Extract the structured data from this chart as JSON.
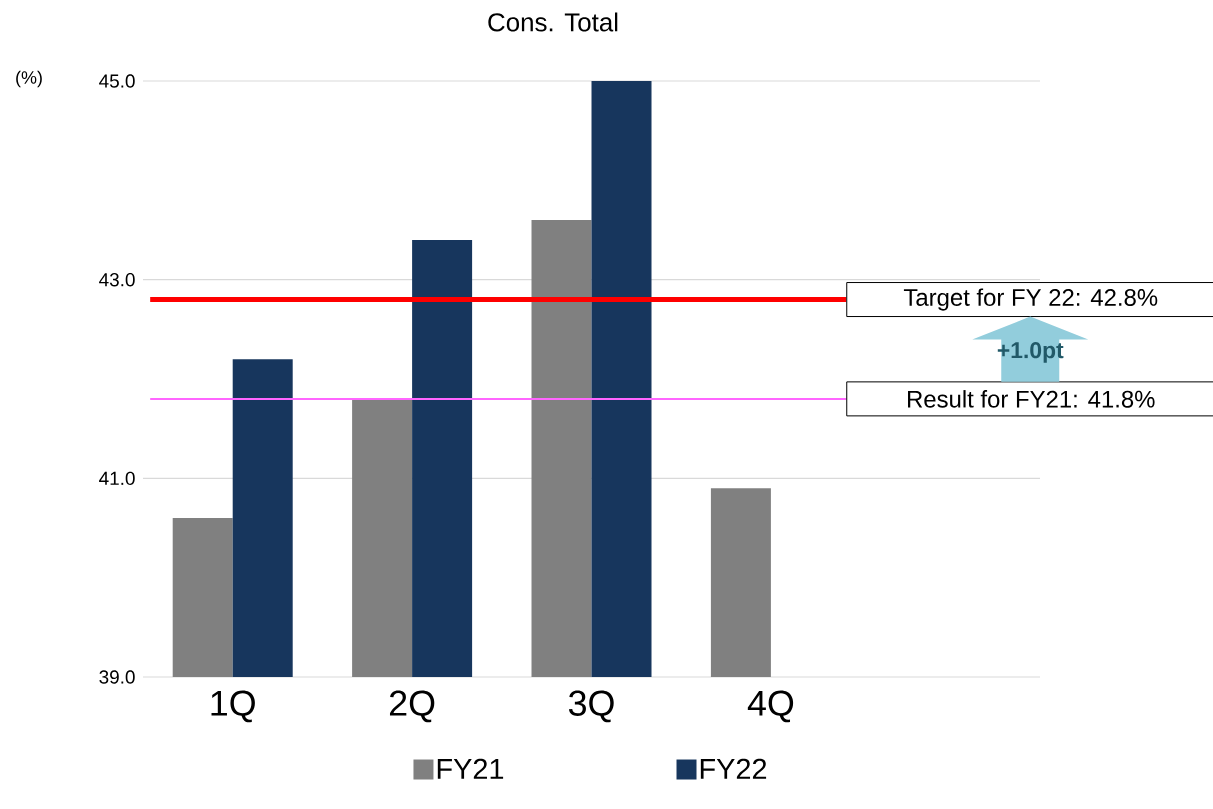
{
  "chart_data": {
    "type": "bar",
    "title": "Cons. Total",
    "ylabel": "(%)",
    "categories": [
      "1Q",
      "2Q",
      "3Q",
      "4Q",
      null
    ],
    "series": [
      {
        "name": "FY21",
        "color": "#808080",
        "values": [
          40.6,
          41.8,
          43.6,
          40.9,
          null
        ]
      },
      {
        "name": "FY22",
        "color": "#17365d",
        "values": [
          42.2,
          43.4,
          45.0,
          null,
          null
        ]
      }
    ],
    "ylim": [
      39,
      45
    ],
    "yticks": [
      {
        "value": 39,
        "label": "39.0"
      },
      {
        "value": 41,
        "label": "41.0"
      },
      {
        "value": 43,
        "label": "43.0"
      },
      {
        "value": 45,
        "label": "45.0"
      }
    ],
    "grid": "y",
    "legend": "bottom",
    "ref_lines": [
      {
        "axis": "y",
        "value": 42.8,
        "label": "Target for FY 22: 42.8%",
        "color": "#ff0000"
      },
      {
        "axis": "y",
        "value": 41.8,
        "label": "Result for FY21: 41.8%",
        "color": "#ff66ff"
      }
    ],
    "annotations": [
      "+1.0pt"
    ]
  }
}
